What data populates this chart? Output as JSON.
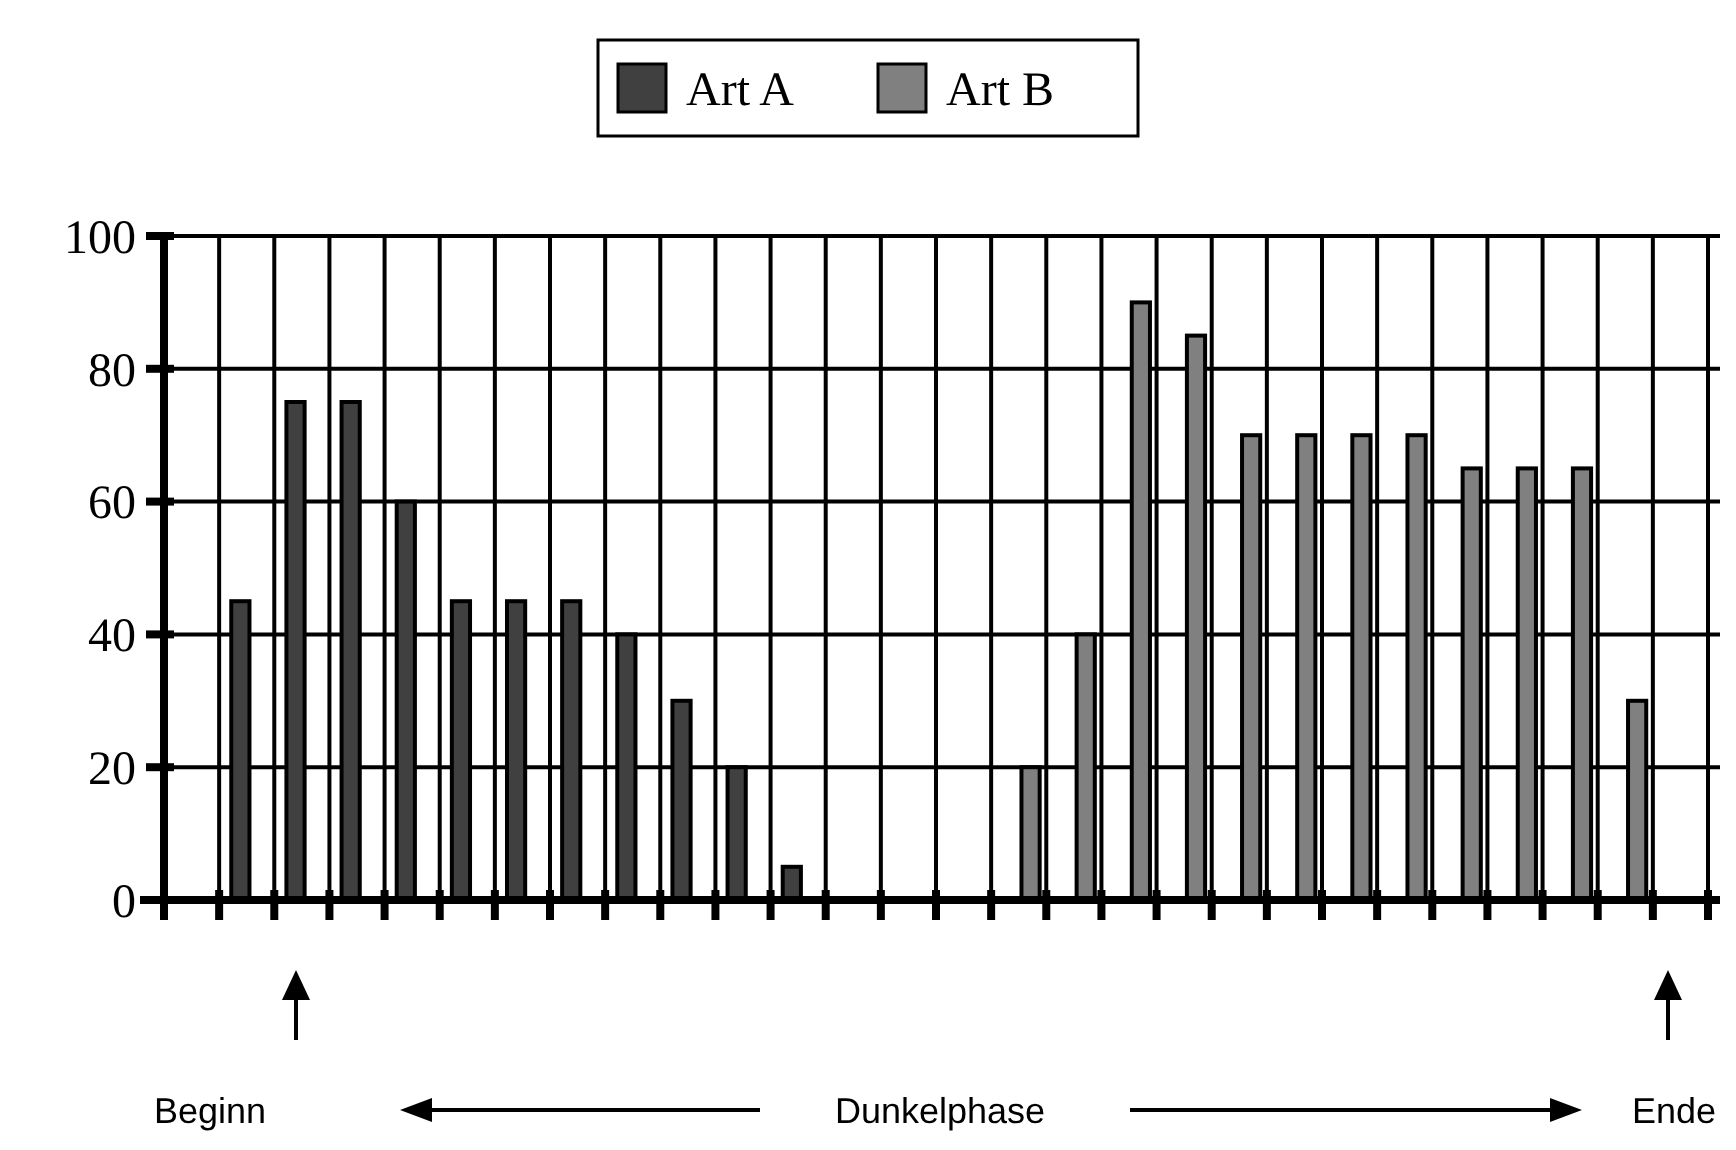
{
  "chart_data": {
    "type": "bar",
    "categories": [
      null,
      null,
      null,
      null,
      null,
      null,
      null,
      null,
      null,
      null,
      null,
      null,
      null,
      null,
      null,
      null,
      null,
      null,
      null,
      null,
      null,
      null,
      null,
      null,
      null,
      null,
      null,
      null
    ],
    "series": [
      {
        "name": "Art A",
        "color": "#404040",
        "values": [
          0,
          45,
          75,
          75,
          60,
          45,
          45,
          45,
          40,
          30,
          20,
          5,
          0,
          0,
          0,
          0,
          0,
          0,
          0,
          0,
          0,
          0,
          0,
          0,
          0,
          0,
          0,
          0
        ]
      },
      {
        "name": "Art B",
        "color": "#808080",
        "values": [
          0,
          0,
          0,
          0,
          0,
          0,
          0,
          0,
          0,
          0,
          0,
          0,
          0,
          0,
          0,
          20,
          40,
          90,
          85,
          70,
          70,
          70,
          70,
          65,
          65,
          65,
          30,
          0
        ]
      }
    ],
    "ylim": [
      0,
      100
    ],
    "yticks": [
      0,
      20,
      40,
      60,
      80,
      100
    ],
    "grid": true,
    "legend": "top",
    "annotations": [
      "Beginn",
      "Dunkelphase",
      "Ende"
    ]
  }
}
